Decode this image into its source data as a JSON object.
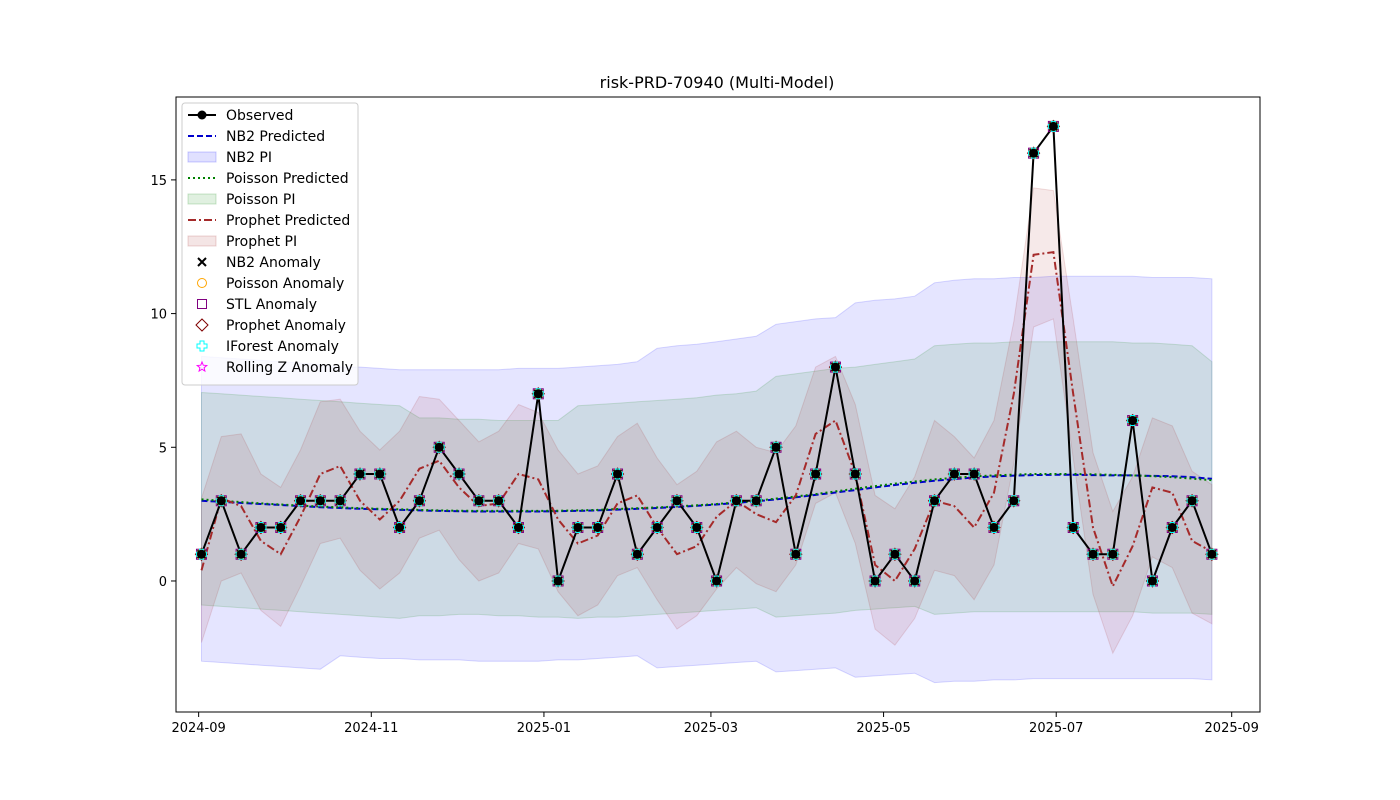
{
  "chart_data": {
    "type": "line",
    "title": "risk-PRD-70940 (Multi-Model)",
    "xlabel": "",
    "ylabel": "",
    "x_axis": {
      "type": "date",
      "range": [
        "2024-08-24",
        "2025-09-11"
      ],
      "ticks": [
        "2024-09",
        "2024-11",
        "2025-01",
        "2025-03",
        "2025-05",
        "2025-07",
        "2025-09"
      ]
    },
    "y_axis": {
      "range": [
        -4.9,
        18.1
      ],
      "ticks": [
        0,
        5,
        10,
        15
      ]
    },
    "grid": false,
    "legend_placement": "top-left",
    "dates": [
      "2024-09-02",
      "2024-09-09",
      "2024-09-16",
      "2024-09-23",
      "2024-09-30",
      "2024-10-07",
      "2024-10-14",
      "2024-10-21",
      "2024-10-28",
      "2024-11-04",
      "2024-11-11",
      "2024-11-18",
      "2024-11-25",
      "2024-12-02",
      "2024-12-09",
      "2024-12-16",
      "2024-12-23",
      "2024-12-30",
      "2025-01-06",
      "2025-01-13",
      "2025-01-20",
      "2025-01-27",
      "2025-02-03",
      "2025-02-10",
      "2025-02-17",
      "2025-02-24",
      "2025-03-03",
      "2025-03-10",
      "2025-03-17",
      "2025-03-24",
      "2025-03-31",
      "2025-04-07",
      "2025-04-14",
      "2025-04-21",
      "2025-04-28",
      "2025-05-05",
      "2025-05-12",
      "2025-05-19",
      "2025-05-26",
      "2025-06-02",
      "2025-06-09",
      "2025-06-16",
      "2025-06-23",
      "2025-06-30",
      "2025-07-07",
      "2025-07-14",
      "2025-07-21",
      "2025-07-28",
      "2025-08-04",
      "2025-08-11",
      "2025-08-18",
      "2025-08-25"
    ],
    "series": [
      {
        "name": "Observed",
        "kind": "line-markers",
        "color": "#000000",
        "values": [
          1,
          3,
          1,
          2,
          2,
          3,
          3,
          3,
          4,
          4,
          2,
          3,
          5,
          4,
          3,
          3,
          2,
          7,
          0,
          2,
          2,
          4,
          1,
          2,
          3,
          2,
          0,
          3,
          3,
          5,
          1,
          4,
          8,
          4,
          0,
          1,
          0,
          3,
          4,
          4,
          2,
          3,
          16,
          17,
          2,
          1,
          1,
          6,
          0,
          2,
          3,
          1
        ]
      },
      {
        "name": "NB2 Predicted",
        "kind": "line",
        "color": "#0000cc",
        "dash": "dashed",
        "values": [
          3.0,
          2.96,
          2.92,
          2.88,
          2.84,
          2.8,
          2.76,
          2.73,
          2.7,
          2.68,
          2.66,
          2.64,
          2.62,
          2.61,
          2.6,
          2.6,
          2.6,
          2.6,
          2.61,
          2.62,
          2.64,
          2.67,
          2.7,
          2.73,
          2.77,
          2.81,
          2.86,
          2.92,
          2.98,
          3.05,
          3.13,
          3.22,
          3.31,
          3.4,
          3.5,
          3.59,
          3.67,
          3.75,
          3.81,
          3.87,
          3.91,
          3.94,
          3.96,
          3.97,
          3.97,
          3.96,
          3.95,
          3.95,
          3.93,
          3.92,
          3.88,
          3.82
        ]
      },
      {
        "name": "NB2 PI",
        "kind": "band",
        "color": "#0000ff",
        "opacity": 0.1,
        "lower": [
          -3.0,
          -3.05,
          -3.1,
          -3.15,
          -3.2,
          -3.25,
          -3.3,
          -2.8,
          -2.85,
          -2.9,
          -2.9,
          -2.95,
          -2.95,
          -2.95,
          -3.0,
          -3.0,
          -3.0,
          -3.0,
          -2.95,
          -2.95,
          -2.9,
          -2.85,
          -2.8,
          -3.25,
          -3.2,
          -3.15,
          -3.1,
          -3.05,
          -3.0,
          -3.4,
          -3.35,
          -3.3,
          -3.25,
          -3.6,
          -3.55,
          -3.5,
          -3.45,
          -3.8,
          -3.75,
          -3.75,
          -3.7,
          -3.7,
          -3.65,
          -3.65,
          -3.65,
          -3.65,
          -3.65,
          -3.65,
          -3.65,
          -3.65,
          -3.65,
          -3.7
        ],
        "upper": [
          8.4,
          8.35,
          8.3,
          8.25,
          8.2,
          8.15,
          8.1,
          8.0,
          8.0,
          7.95,
          7.9,
          7.9,
          7.9,
          7.9,
          7.9,
          7.9,
          7.95,
          7.95,
          7.95,
          8.0,
          8.05,
          8.1,
          8.2,
          8.7,
          8.8,
          8.85,
          8.95,
          9.05,
          9.15,
          9.6,
          9.7,
          9.8,
          9.85,
          10.4,
          10.5,
          10.55,
          10.65,
          11.15,
          11.25,
          11.3,
          11.3,
          11.35,
          11.35,
          11.4,
          11.4,
          11.4,
          11.4,
          11.4,
          11.35,
          11.35,
          11.35,
          11.3
        ]
      },
      {
        "name": "Poisson Predicted",
        "kind": "line",
        "color": "#008000",
        "dash": "dotted",
        "values": [
          3.05,
          3.0,
          2.95,
          2.9,
          2.86,
          2.82,
          2.78,
          2.75,
          2.72,
          2.7,
          2.68,
          2.66,
          2.64,
          2.63,
          2.62,
          2.62,
          2.62,
          2.62,
          2.63,
          2.64,
          2.66,
          2.69,
          2.72,
          2.75,
          2.79,
          2.83,
          2.88,
          2.94,
          3.0,
          3.08,
          3.16,
          3.25,
          3.35,
          3.45,
          3.55,
          3.64,
          3.72,
          3.8,
          3.86,
          3.91,
          3.95,
          3.98,
          4.0,
          4.0,
          4.0,
          3.99,
          3.97,
          3.95,
          3.92,
          3.88,
          3.83,
          3.77
        ]
      },
      {
        "name": "Poisson PI",
        "kind": "band",
        "color": "#008000",
        "opacity": 0.1,
        "lower": [
          -0.9,
          -0.95,
          -1.0,
          -1.05,
          -1.1,
          -1.15,
          -1.2,
          -1.25,
          -1.3,
          -1.35,
          -1.4,
          -1.3,
          -1.3,
          -1.25,
          -1.25,
          -1.3,
          -1.3,
          -1.35,
          -1.35,
          -1.4,
          -1.35,
          -1.35,
          -1.3,
          -1.25,
          -1.2,
          -1.15,
          -1.1,
          -1.05,
          -1.0,
          -1.35,
          -1.3,
          -1.25,
          -1.2,
          -1.1,
          -1.05,
          -1.0,
          -0.95,
          -1.25,
          -1.2,
          -1.15,
          -1.15,
          -1.15,
          -1.15,
          -1.15,
          -1.15,
          -1.15,
          -1.15,
          -1.15,
          -1.2,
          -1.2,
          -1.2,
          -1.25
        ],
        "upper": [
          7.05,
          7.0,
          6.95,
          6.9,
          6.85,
          6.8,
          6.75,
          6.7,
          6.65,
          6.6,
          6.55,
          6.1,
          6.1,
          6.05,
          6.05,
          6.0,
          6.0,
          6.0,
          6.0,
          6.55,
          6.6,
          6.65,
          6.7,
          6.75,
          6.8,
          6.85,
          6.95,
          7.0,
          7.1,
          7.65,
          7.75,
          7.85,
          7.95,
          8.0,
          8.1,
          8.2,
          8.3,
          8.8,
          8.85,
          8.9,
          8.9,
          8.95,
          8.95,
          8.95,
          8.95,
          8.95,
          8.95,
          8.9,
          8.9,
          8.85,
          8.8,
          8.2
        ]
      },
      {
        "name": "Prophet Predicted",
        "kind": "line",
        "color": "#a52a2a",
        "dash": "dashdot",
        "values": [
          0.4,
          3.1,
          2.8,
          1.5,
          1.0,
          2.4,
          4.0,
          4.3,
          3.0,
          2.3,
          3.0,
          4.2,
          4.5,
          3.5,
          2.8,
          2.9,
          4.0,
          3.8,
          2.3,
          1.4,
          1.7,
          2.9,
          3.2,
          2.0,
          1.0,
          1.3,
          2.4,
          3.0,
          2.5,
          2.2,
          3.2,
          5.5,
          6.0,
          4.0,
          0.6,
          0.0,
          1.2,
          3.0,
          2.8,
          2.0,
          3.3,
          7.0,
          12.2,
          12.3,
          7.0,
          2.0,
          -0.2,
          1.3,
          3.5,
          3.3,
          1.5,
          1.1
        ]
      },
      {
        "name": "Prophet PI",
        "kind": "band",
        "color": "#a52a2a",
        "opacity": 0.1,
        "lower": [
          -2.3,
          0.0,
          0.3,
          -1.1,
          -1.7,
          -0.2,
          1.4,
          1.6,
          0.4,
          -0.3,
          0.3,
          1.6,
          1.9,
          0.8,
          0.0,
          0.3,
          1.4,
          1.2,
          -0.4,
          -1.3,
          -0.9,
          0.2,
          0.5,
          -0.7,
          -1.8,
          -1.3,
          -0.3,
          0.5,
          -0.1,
          -0.4,
          0.6,
          2.9,
          3.3,
          1.4,
          -1.8,
          -2.4,
          -1.4,
          0.4,
          0.2,
          -0.7,
          0.6,
          4.4,
          9.5,
          9.8,
          4.6,
          -0.5,
          -2.7,
          -1.3,
          0.9,
          0.5,
          -1.2,
          -1.6
        ],
        "upper": [
          3.1,
          5.4,
          5.5,
          4.0,
          3.5,
          4.9,
          6.7,
          6.8,
          5.6,
          4.9,
          5.6,
          6.9,
          6.8,
          6.0,
          5.2,
          5.6,
          6.6,
          6.3,
          4.9,
          4.0,
          4.3,
          5.4,
          5.9,
          4.6,
          3.6,
          4.1,
          5.2,
          5.6,
          5.0,
          4.8,
          5.8,
          8.0,
          8.4,
          6.6,
          3.2,
          2.7,
          3.9,
          6.0,
          5.4,
          4.6,
          6.0,
          9.7,
          14.7,
          14.6,
          9.8,
          4.8,
          2.6,
          3.9,
          6.1,
          5.8,
          4.1,
          3.6
        ]
      }
    ],
    "anomaly_markers": [
      {
        "name": "NB2 Anomaly",
        "symbol": "x",
        "color": "#000000"
      },
      {
        "name": "Poisson Anomaly",
        "symbol": "circle",
        "color": "#ffa500"
      },
      {
        "name": "STL Anomaly",
        "symbol": "square",
        "color": "#800080"
      },
      {
        "name": "Prophet Anomaly",
        "symbol": "diamond",
        "color": "#800000"
      },
      {
        "name": "IForest Anomaly",
        "symbol": "plus",
        "color": "#00ffff"
      },
      {
        "name": "Rolling Z Anomaly",
        "symbol": "star",
        "color": "#ff00ff"
      }
    ],
    "legend": [
      "Observed",
      "NB2 Predicted",
      "NB2 PI",
      "Poisson Predicted",
      "Poisson PI",
      "Prophet Predicted",
      "Prophet PI",
      "NB2 Anomaly",
      "Poisson Anomaly",
      "STL Anomaly",
      "Prophet Anomaly",
      "IForest Anomaly",
      "Rolling Z Anomaly"
    ]
  }
}
